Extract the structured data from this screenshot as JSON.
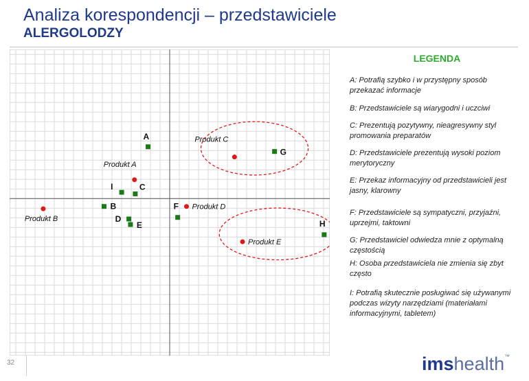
{
  "title": "Analiza korespondencji – przedstawiciele",
  "subtitle": "ALERGOLODZY",
  "legend": {
    "title": "LEGENDA",
    "items": [
      {
        "key": "A",
        "text": "A: Potrafią szybko i w przystępny sposób przekazać informacje"
      },
      {
        "key": "B",
        "text": "B: Przedstawiciele są wiarygodni i uczciwi"
      },
      {
        "key": "C",
        "text": "C: Prezentują pozytywny, nieagresywny styl promowania preparatów"
      },
      {
        "key": "D",
        "text": "D: Przedstawiciele prezentują wysoki poziom merytoryczny"
      },
      {
        "key": "E",
        "text": "E: Przekaz informacyjny od przedstawicieli jest jasny, klarowny"
      },
      {
        "key": "F",
        "text": "F: Przedstawiciele są sympatyczni, przyjaźni, uprzejmi, taktowni"
      },
      {
        "key": "G",
        "text": "G: Przedstawiciel odwiedza mnie z optymalną częstością"
      },
      {
        "key": "H",
        "text": "H: Osoba przedstawiciela nie zmienia się zbyt często"
      },
      {
        "key": "I",
        "text": "I: Potrafią skutecznie posługiwać się używanymi podczas wizyty narzędziami  (materiałami informacyjnymi, tabletem)"
      }
    ]
  },
  "chart_data": {
    "type": "scatter",
    "title": "",
    "xlabel": "",
    "ylabel": "",
    "xlim": [
      -20,
      20
    ],
    "ylim": [
      -20,
      19
    ],
    "grid": true,
    "series": [
      {
        "marker": "square",
        "color": "#1a7a1a",
        "points": [
          {
            "label": "A",
            "x": -2.7,
            "y": 6.6
          },
          {
            "label": "B",
            "x": -8.2,
            "y": -1.0
          },
          {
            "label": "C",
            "x": -4.3,
            "y": 0.6
          },
          {
            "label": "D",
            "x": -5.1,
            "y": -2.6
          },
          {
            "label": "E",
            "x": -4.9,
            "y": -3.3
          },
          {
            "label": "F",
            "x": 1.0,
            "y": -2.4
          },
          {
            "label": "G",
            "x": 13.1,
            "y": 6.0
          },
          {
            "label": "H",
            "x": 19.3,
            "y": -4.6
          },
          {
            "label": "I",
            "x": -6.0,
            "y": 0.8
          }
        ]
      },
      {
        "marker": "circle",
        "color": "#e01818",
        "points": [
          {
            "label": "Produkt A",
            "x": -4.4,
            "y": 2.4
          },
          {
            "label": "Produkt B",
            "x": -15.8,
            "y": -1.3
          },
          {
            "label": "Produkt C",
            "x": 8.1,
            "y": 5.3
          },
          {
            "label": "Produkt D",
            "x": 2.1,
            "y": -1.0
          },
          {
            "label": "Produkt E",
            "x": 9.1,
            "y": -5.5
          }
        ]
      }
    ],
    "annotations": [
      {
        "type": "ellipse",
        "style": "dashed",
        "color": "#e01818",
        "cx": 10.6,
        "cy": 6.4,
        "rx": 6.7,
        "ry": 3.4
      },
      {
        "type": "ellipse",
        "style": "dashed",
        "color": "#e01818",
        "cx": 13.5,
        "cy": -4.5,
        "rx": 7.3,
        "ry": 3.3
      }
    ]
  },
  "footer": {
    "page_number": "32",
    "logo_ims": "ims",
    "logo_health": "health",
    "logo_tm": "™"
  }
}
